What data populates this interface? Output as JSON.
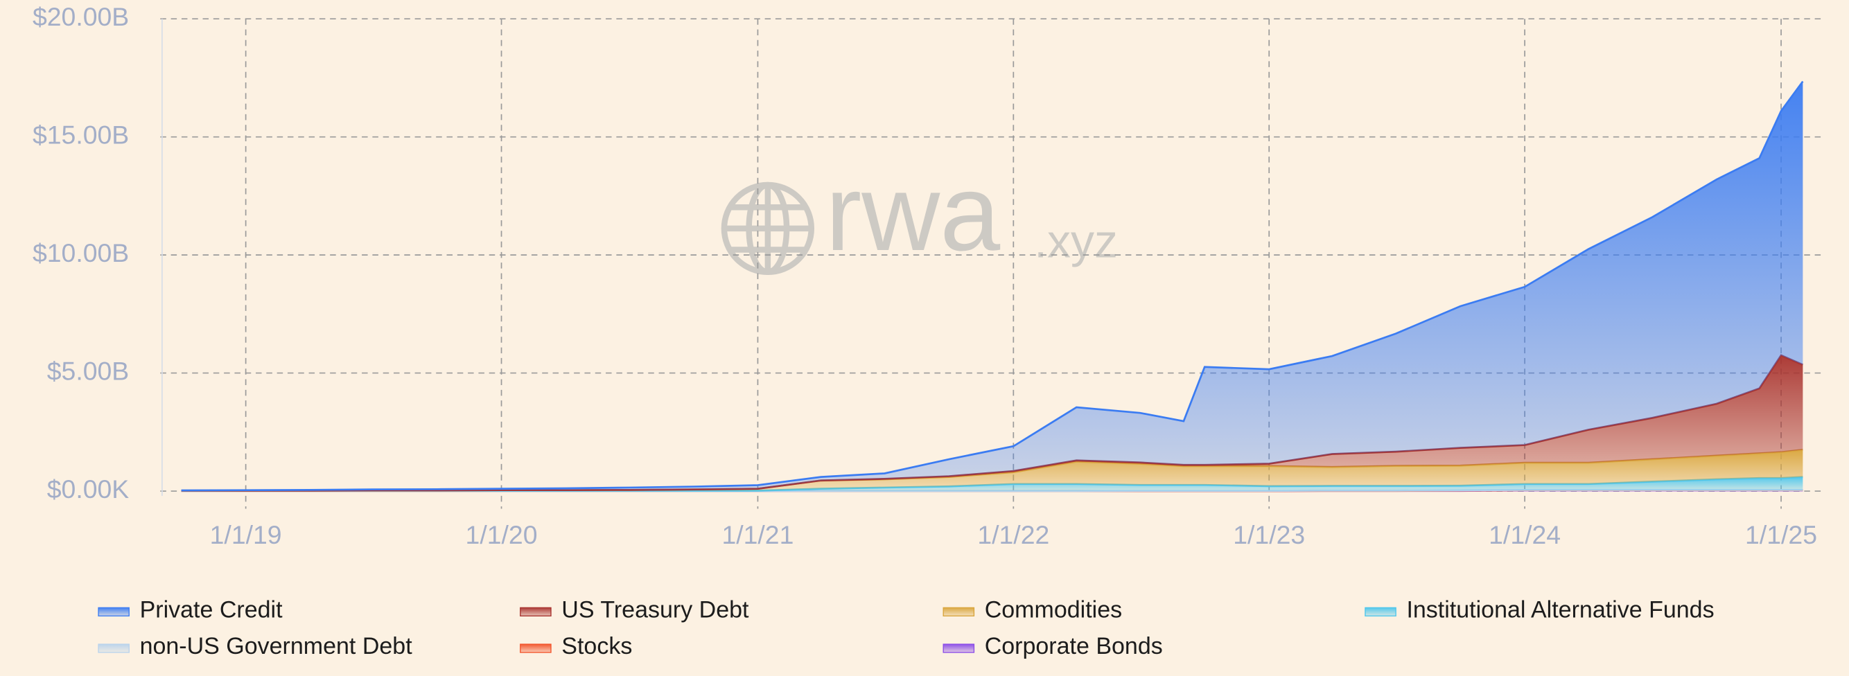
{
  "chart_data": {
    "type": "stacked-area",
    "watermark": "rwa",
    "watermark_suffix": ".xyz",
    "x": [
      "10/1/18",
      "1/1/19",
      "4/1/19",
      "7/1/19",
      "10/1/19",
      "1/1/20",
      "4/1/20",
      "7/1/20",
      "10/1/20",
      "1/1/21",
      "4/1/21",
      "7/1/21",
      "10/1/21",
      "1/1/22",
      "4/1/22",
      "7/1/22",
      "9/1/22",
      "10/1/22",
      "1/1/23",
      "4/1/23",
      "7/1/23",
      "10/1/23",
      "1/1/24",
      "4/1/24",
      "7/1/24",
      "10/1/24",
      "12/1/24",
      "1/1/25",
      "2/1/25"
    ],
    "xlim": [
      "9/1/18",
      "3/1/25"
    ],
    "xticks": [
      "1/1/19",
      "1/1/20",
      "1/1/21",
      "1/1/22",
      "1/1/23",
      "1/1/24",
      "1/1/25"
    ],
    "ylim": [
      0,
      20
    ],
    "yticks": [
      {
        "value": 0,
        "label": "$0.00K"
      },
      {
        "value": 5,
        "label": "$5.00B"
      },
      {
        "value": 10,
        "label": "$10.00B"
      },
      {
        "value": 15,
        "label": "$15.00B"
      },
      {
        "value": 20,
        "label": "$20.00B"
      }
    ],
    "grid": true,
    "legend": "bottom",
    "series": [
      {
        "name": "Private Credit",
        "color": "#3b7cf2",
        "values": [
          0.01,
          0.02,
          0.03,
          0.04,
          0.05,
          0.06,
          0.08,
          0.1,
          0.12,
          0.15,
          0.15,
          0.23,
          0.72,
          1.05,
          2.25,
          2.1,
          1.85,
          4.15,
          4.0,
          4.15,
          5.0,
          6.0,
          6.7,
          7.65,
          8.5,
          9.5,
          9.75,
          10.35,
          12.0
        ]
      },
      {
        "name": "US Treasury Debt",
        "color": "#a8322e",
        "values": [
          0,
          0,
          0,
          0,
          0,
          0,
          0,
          0,
          0,
          0,
          0,
          0.02,
          0.03,
          0.05,
          0.05,
          0.05,
          0.05,
          0.05,
          0.1,
          0.55,
          0.6,
          0.75,
          0.75,
          1.4,
          1.75,
          2.2,
          2.75,
          4.1,
          3.6
        ]
      },
      {
        "name": "Commodities",
        "color": "#d9a53c",
        "values": [
          0,
          0,
          0,
          0.01,
          0.01,
          0.02,
          0.02,
          0.03,
          0.05,
          0.08,
          0.35,
          0.35,
          0.4,
          0.5,
          0.95,
          0.9,
          0.8,
          0.8,
          0.85,
          0.8,
          0.85,
          0.85,
          0.9,
          0.9,
          0.95,
          1.0,
          1.05,
          1.1,
          1.15
        ]
      },
      {
        "name": "Institutional Alternative Funds",
        "color": "#4cc6ec",
        "values": [
          0.02,
          0.02,
          0.02,
          0.02,
          0.02,
          0.02,
          0.02,
          0.02,
          0.02,
          0.02,
          0.1,
          0.15,
          0.2,
          0.3,
          0.3,
          0.25,
          0.25,
          0.25,
          0.2,
          0.2,
          0.2,
          0.2,
          0.25,
          0.25,
          0.35,
          0.45,
          0.5,
          0.5,
          0.55
        ]
      },
      {
        "name": "non-US Government Debt",
        "color": "#b9d3ec",
        "values": [
          0,
          0,
          0,
          0,
          0,
          0,
          0,
          0,
          0,
          0,
          0,
          0,
          0,
          0,
          0,
          0.01,
          0.01,
          0.01,
          0.01,
          0.01,
          0.01,
          0.01,
          0.01,
          0.01,
          0.01,
          0.01,
          0.01,
          0.01,
          0.01
        ]
      },
      {
        "name": "Stocks",
        "color": "#f2542b",
        "values": [
          0,
          0,
          0,
          0,
          0,
          0,
          0,
          0,
          0,
          0,
          0,
          0,
          0,
          0,
          0,
          0,
          0,
          0,
          0,
          0,
          0,
          0.01,
          0.01,
          0.01,
          0.01,
          0.01,
          0.01,
          0.01,
          0.01
        ]
      },
      {
        "name": "Corporate Bonds",
        "color": "#8b4ce8",
        "values": [
          0,
          0,
          0,
          0,
          0,
          0,
          0,
          0,
          0,
          0,
          0,
          0,
          0,
          0,
          0,
          0,
          0,
          0,
          0,
          0.01,
          0.01,
          0.01,
          0.03,
          0.03,
          0.03,
          0.03,
          0.03,
          0.03,
          0.03
        ]
      }
    ]
  }
}
